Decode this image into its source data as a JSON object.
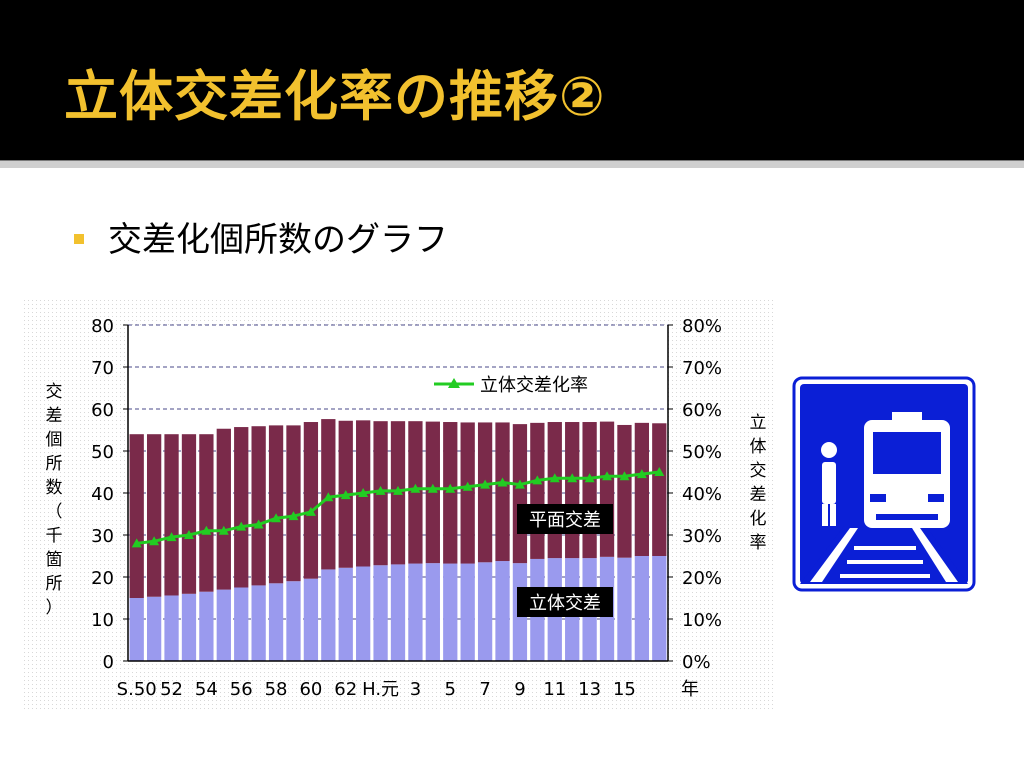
{
  "slide": {
    "title": "立体交差化率の推移②",
    "bullet_text": "交差化個所数のグラフ"
  },
  "colors": {
    "title": "#f2c12e",
    "bullet": "#f2c12e",
    "bar_grade_separated": "#9a9aee",
    "bar_level_crossing": "#7a2a4a",
    "rate_line": "#22cc22",
    "sign_blue": "#0b1fd6"
  },
  "icons": {
    "sign": "railway-crossing-sign-icon"
  },
  "chart_data": {
    "type": "bar",
    "stacked": true,
    "ylabel": "交差個所数（千箇所）",
    "y2label": "立体交差化率",
    "ylim": [
      0,
      80
    ],
    "y2lim": [
      0,
      80
    ],
    "yticks": [
      "0",
      "10",
      "20",
      "30",
      "40",
      "50",
      "60",
      "70",
      "80"
    ],
    "y2ticks": [
      "0%",
      "10%",
      "20%",
      "30%",
      "40%",
      "50%",
      "60%",
      "70%",
      "80%"
    ],
    "xtick_labels": [
      "S.50",
      "52",
      "54",
      "56",
      "58",
      "60",
      "62",
      "H.元",
      "3",
      "5",
      "7",
      "9",
      "11",
      "13",
      "15",
      "年"
    ],
    "categories": [
      "S.50",
      "51",
      "52",
      "53",
      "54",
      "55",
      "56",
      "57",
      "58",
      "59",
      "60",
      "61",
      "62",
      "63",
      "H.元",
      "2",
      "3",
      "4",
      "5",
      "6",
      "7",
      "8",
      "9",
      "10",
      "11",
      "12",
      "13",
      "14",
      "15",
      "16",
      "17"
    ],
    "legend": {
      "line": "立体交差化率",
      "bar_top": "平面交差",
      "bar_bottom": "立体交差"
    },
    "grid": "horizontal dashed",
    "series": [
      {
        "name": "立体交差",
        "type": "bar",
        "values": [
          15.0,
          15.3,
          15.6,
          16.0,
          16.5,
          17.0,
          17.5,
          18.0,
          18.5,
          19.0,
          19.6,
          21.8,
          22.2,
          22.5,
          22.8,
          23.0,
          23.2,
          23.3,
          23.2,
          23.2,
          23.5,
          23.8,
          23.3,
          24.3,
          24.5,
          24.5,
          24.5,
          24.8,
          24.6,
          25.0,
          25.0
        ]
      },
      {
        "name": "平面交差",
        "type": "bar",
        "values": [
          39.0,
          38.7,
          38.4,
          38.0,
          37.5,
          38.3,
          38.2,
          37.9,
          37.6,
          37.1,
          37.3,
          35.8,
          35.0,
          34.8,
          34.3,
          34.1,
          33.9,
          33.7,
          33.7,
          33.6,
          33.3,
          33.0,
          33.1,
          32.4,
          32.4,
          32.4,
          32.4,
          32.2,
          31.6,
          31.7,
          31.6
        ]
      },
      {
        "name": "立体交差化率",
        "type": "line",
        "axis": "right",
        "values": [
          28,
          28.5,
          29.5,
          30,
          31,
          31,
          32,
          32.5,
          34,
          34.5,
          35.5,
          39,
          39.5,
          40,
          40.5,
          40.5,
          41,
          41,
          41,
          41.5,
          42,
          42.5,
          42,
          43,
          43.5,
          43.5,
          43.5,
          44,
          44,
          44.5,
          45
        ]
      }
    ]
  }
}
